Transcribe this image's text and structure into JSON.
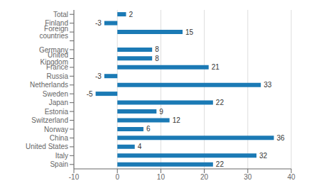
{
  "chart_data": {
    "type": "bar",
    "orientation": "horizontal",
    "categories": [
      "Total",
      "Finland",
      "Foreign countries",
      null,
      "Germany",
      "United Kingdom",
      "France",
      "Russia",
      "Netherlands",
      "Sweden",
      "Japan",
      "Estonia",
      "Switzerland",
      "Norway",
      "China",
      "United States",
      "Italy",
      "Spain"
    ],
    "values": [
      2,
      -3,
      15,
      null,
      8,
      8,
      21,
      -3,
      33,
      -5,
      22,
      9,
      12,
      6,
      36,
      4,
      32,
      22
    ],
    "color": "#1b7ab5",
    "xlim": [
      -10,
      40
    ],
    "xticks": [
      -10,
      0,
      10,
      20,
      30,
      40
    ],
    "grid": true,
    "data_labels": true
  }
}
